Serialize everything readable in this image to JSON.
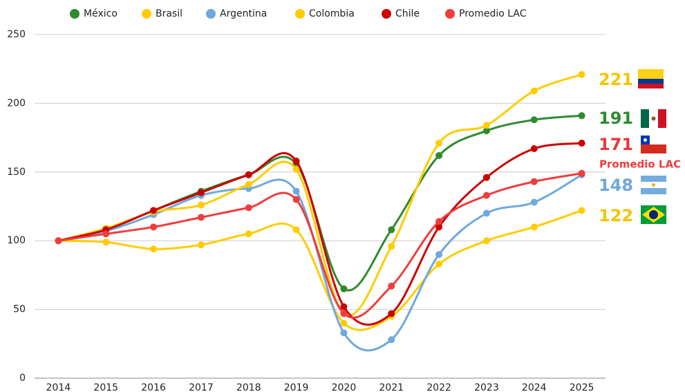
{
  "chart_data": {
    "type": "line",
    "categories": [
      "2014",
      "2015",
      "2016",
      "2017",
      "2018",
      "2019",
      "2020",
      "2021",
      "2022",
      "2023",
      "2024",
      "2025"
    ],
    "series": [
      {
        "name": "México",
        "color": "#2e8b2e",
        "values": [
          100,
          108,
          122,
          136,
          148,
          156,
          65,
          108,
          162,
          180,
          188,
          191
        ]
      },
      {
        "name": "Brasil",
        "color": "#ffcc00",
        "values": [
          100,
          99,
          94,
          97,
          105,
          108,
          40,
          45,
          83,
          100,
          110,
          122
        ]
      },
      {
        "name": "Argentina",
        "color": "#6fa8dc",
        "values": [
          100,
          107,
          119,
          133,
          138,
          136,
          33,
          28,
          90,
          120,
          128,
          148
        ]
      },
      {
        "name": "Colombia",
        "color": "#ffcc00",
        "values": [
          100,
          109,
          121,
          126,
          141,
          152,
          47,
          96,
          171,
          184,
          209,
          221
        ]
      },
      {
        "name": "Chile",
        "color": "#cc0000",
        "values": [
          100,
          108,
          122,
          135,
          148,
          158,
          52,
          47,
          110,
          146,
          167,
          171
        ]
      },
      {
        "name": "Promedio LAC",
        "color": "#f03c3c",
        "values": [
          100,
          105,
          110,
          117,
          124,
          130,
          47,
          67,
          114,
          133,
          143,
          149
        ]
      }
    ],
    "ylim": [
      0,
      250
    ],
    "yticks": [
      0,
      50,
      100,
      150,
      200,
      250
    ],
    "grid": true
  }
}
